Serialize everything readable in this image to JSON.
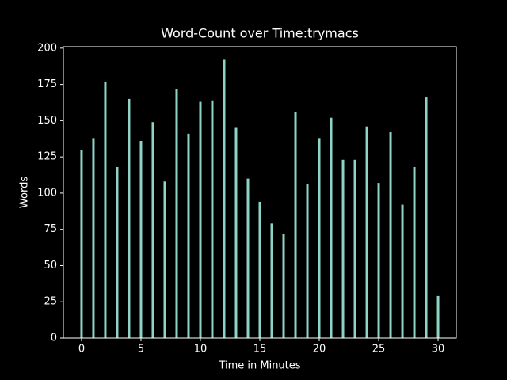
{
  "chart_data": {
    "type": "bar",
    "title": "Word-Count over Time:trymacs",
    "xlabel": "Time in Minutes",
    "ylabel": "Words",
    "x": [
      0,
      1,
      2,
      3,
      4,
      5,
      6,
      7,
      8,
      9,
      10,
      11,
      12,
      13,
      14,
      15,
      16,
      17,
      18,
      19,
      20,
      21,
      22,
      23,
      24,
      25,
      26,
      27,
      28,
      29,
      30
    ],
    "values": [
      130,
      138,
      177,
      118,
      165,
      136,
      149,
      108,
      172,
      141,
      163,
      164,
      192,
      145,
      110,
      94,
      79,
      72,
      156,
      106,
      138,
      152,
      123,
      123,
      146,
      107,
      142,
      92,
      118,
      166,
      29
    ],
    "color": "#8dd3c7",
    "bar_width": 0.2,
    "xlim": [
      -1.53,
      31.53
    ],
    "xticks": [
      0,
      5,
      10,
      15,
      20,
      25,
      30
    ],
    "ylim": [
      0,
      201
    ],
    "yticks": [
      0,
      25,
      50,
      75,
      100,
      125,
      150,
      175,
      200
    ]
  }
}
